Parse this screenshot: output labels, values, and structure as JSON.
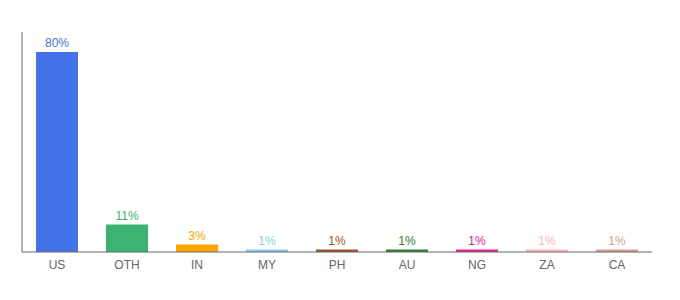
{
  "chart_data": {
    "type": "bar",
    "categories": [
      "US",
      "OTH",
      "IN",
      "MY",
      "PH",
      "AU",
      "NG",
      "ZA",
      "CA"
    ],
    "values": [
      80,
      11,
      3,
      1,
      1,
      1,
      1,
      1,
      1
    ],
    "value_labels": [
      "80%",
      "11%",
      "3%",
      "1%",
      "1%",
      "1%",
      "1%",
      "1%",
      "1%"
    ],
    "colors": [
      "#4472e8",
      "#3cb371",
      "#ffa500",
      "#87ceeb",
      "#a0522d",
      "#2e7d32",
      "#e91e8c",
      "#ffb6c1",
      "#d4a090"
    ],
    "ylim": [
      0,
      88
    ],
    "grid": false,
    "data_labels": true,
    "tick_labels": "x"
  }
}
